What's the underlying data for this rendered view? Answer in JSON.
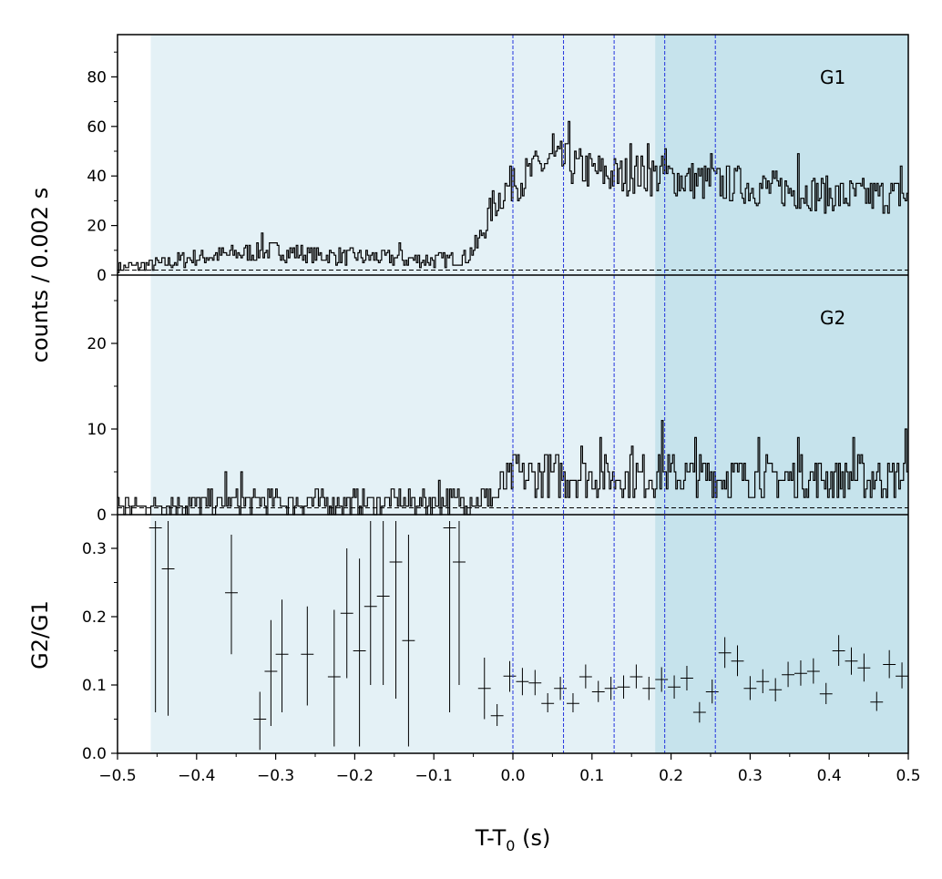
{
  "chart_data": {
    "type": "line",
    "xlabel": "T-T",
    "xlabel_sub": "0",
    "xlabel_unit": " (s)",
    "xlim": [
      -0.5,
      0.5
    ],
    "x_ticks": [
      -0.5,
      -0.4,
      -0.3,
      -0.2,
      -0.1,
      0.0,
      0.1,
      0.2,
      0.3,
      0.4,
      0.5
    ],
    "x_tick_labels": [
      "−0.5",
      "−0.4",
      "−0.3",
      "−0.2",
      "−0.1",
      "0.0",
      "0.1",
      "0.2",
      "0.3",
      "0.4",
      "0.5"
    ],
    "shaded_regions": [
      {
        "x": [
          -0.458,
          0.5
        ],
        "color": "#e4f1f6"
      },
      {
        "x": [
          0.18,
          0.5
        ],
        "color": "#c6e3ec"
      }
    ],
    "vertical_lines": [
      0.0,
      0.064,
      0.128,
      0.192,
      0.256
    ],
    "vertical_line_color": "#2233dd",
    "line_color": "#000000",
    "shared_ylabel": "counts /  0.002 s",
    "panels": [
      {
        "name": "G1",
        "label": "G1",
        "type": "step",
        "ylim": [
          0,
          95
        ],
        "y_ticks": [
          0,
          20,
          40,
          60,
          80
        ],
        "background_level": 2,
        "segments": [
          [
            -0.5,
            3
          ],
          [
            -0.46,
            4
          ],
          [
            -0.4,
            7
          ],
          [
            -0.3,
            10
          ],
          [
            -0.25,
            8
          ],
          [
            -0.1,
            6
          ],
          [
            -0.06,
            7
          ],
          [
            -0.045,
            12
          ],
          [
            -0.035,
            20
          ],
          [
            -0.025,
            28
          ],
          [
            -0.015,
            32
          ],
          [
            -0.005,
            36
          ],
          [
            0.005,
            38
          ],
          [
            0.02,
            40
          ],
          [
            0.035,
            44
          ],
          [
            0.05,
            46
          ],
          [
            0.075,
            44
          ],
          [
            0.1,
            42
          ],
          [
            0.13,
            40
          ],
          [
            0.16,
            41
          ],
          [
            0.19,
            40
          ],
          [
            0.23,
            38
          ],
          [
            0.29,
            36
          ],
          [
            0.35,
            34
          ],
          [
            0.42,
            32
          ],
          [
            0.5,
            32
          ]
        ],
        "spikes": [
          [
            -0.318,
            17
          ],
          [
            -0.145,
            13
          ],
          [
            0.0,
            43
          ],
          [
            0.023,
            47
          ],
          [
            0.05,
            57
          ],
          [
            0.07,
            62
          ],
          [
            0.148,
            53
          ],
          [
            0.17,
            53
          ],
          [
            0.192,
            51
          ],
          [
            0.25,
            49
          ],
          [
            0.285,
            44
          ],
          [
            0.36,
            49
          ],
          [
            0.49,
            44
          ]
        ]
      },
      {
        "name": "G2",
        "label": "G2",
        "type": "step",
        "ylim": [
          0,
          28
        ],
        "y_ticks": [
          0,
          10,
          20
        ],
        "background_level": 0.8,
        "segments": [
          [
            -0.5,
            1
          ],
          [
            -0.3,
            1.5
          ],
          [
            -0.1,
            1.5
          ],
          [
            -0.02,
            2
          ],
          [
            -0.01,
            4
          ],
          [
            0.0,
            4.5
          ],
          [
            0.1,
            4.5
          ],
          [
            0.2,
            4.5
          ],
          [
            0.3,
            4.3
          ],
          [
            0.4,
            4.3
          ],
          [
            0.5,
            4.3
          ]
        ],
        "spikes": [
          [
            -0.365,
            5
          ],
          [
            -0.345,
            5
          ],
          [
            -0.095,
            4
          ],
          [
            -0.03,
            3
          ],
          [
            0.005,
            7
          ],
          [
            0.04,
            7
          ],
          [
            0.085,
            8
          ],
          [
            0.11,
            9
          ],
          [
            0.15,
            8
          ],
          [
            0.188,
            11
          ],
          [
            0.23,
            9
          ],
          [
            0.31,
            9
          ],
          [
            0.36,
            9
          ],
          [
            0.43,
            9
          ],
          [
            0.495,
            10
          ]
        ]
      },
      {
        "name": "G2/G1",
        "ylabel": "G2/G1",
        "type": "errorbar",
        "ylim": [
          0,
          0.34
        ],
        "y_ticks": [
          0.0,
          0.1,
          0.2,
          0.3
        ],
        "y_tick_labels": [
          "0.0",
          "0.1",
          "0.2",
          "0.3"
        ],
        "x_halfwidth": 0.008,
        "points": [
          {
            "x": -0.452,
            "y": 0.33,
            "lo": 0.06,
            "hi": 0.34
          },
          {
            "x": -0.436,
            "y": 0.27,
            "lo": 0.055,
            "hi": 0.34
          },
          {
            "x": -0.356,
            "y": 0.235,
            "lo": 0.145,
            "hi": 0.32
          },
          {
            "x": -0.32,
            "y": 0.05,
            "lo": 0.005,
            "hi": 0.09
          },
          {
            "x": -0.306,
            "y": 0.12,
            "lo": 0.04,
            "hi": 0.195
          },
          {
            "x": -0.292,
            "y": 0.145,
            "lo": 0.06,
            "hi": 0.225
          },
          {
            "x": -0.26,
            "y": 0.145,
            "lo": 0.07,
            "hi": 0.215
          },
          {
            "x": -0.226,
            "y": 0.112,
            "lo": 0.01,
            "hi": 0.21
          },
          {
            "x": -0.21,
            "y": 0.205,
            "lo": 0.11,
            "hi": 0.3
          },
          {
            "x": -0.194,
            "y": 0.15,
            "lo": 0.01,
            "hi": 0.285
          },
          {
            "x": -0.18,
            "y": 0.215,
            "lo": 0.1,
            "hi": 0.34
          },
          {
            "x": -0.164,
            "y": 0.23,
            "lo": 0.1,
            "hi": 0.34
          },
          {
            "x": -0.148,
            "y": 0.28,
            "lo": 0.08,
            "hi": 0.34
          },
          {
            "x": -0.132,
            "y": 0.165,
            "lo": 0.01,
            "hi": 0.32
          },
          {
            "x": -0.08,
            "y": 0.33,
            "lo": 0.06,
            "hi": 0.34
          },
          {
            "x": -0.068,
            "y": 0.28,
            "lo": 0.1,
            "hi": 0.34
          },
          {
            "x": -0.036,
            "y": 0.095,
            "lo": 0.05,
            "hi": 0.14
          },
          {
            "x": -0.02,
            "y": 0.055,
            "lo": 0.04,
            "hi": 0.072
          },
          {
            "x": -0.004,
            "y": 0.113,
            "lo": 0.09,
            "hi": 0.135
          },
          {
            "x": 0.012,
            "y": 0.105,
            "lo": 0.085,
            "hi": 0.125
          },
          {
            "x": 0.028,
            "y": 0.103,
            "lo": 0.085,
            "hi": 0.122
          },
          {
            "x": 0.044,
            "y": 0.073,
            "lo": 0.06,
            "hi": 0.088
          },
          {
            "x": 0.06,
            "y": 0.095,
            "lo": 0.078,
            "hi": 0.112
          },
          {
            "x": 0.076,
            "y": 0.073,
            "lo": 0.06,
            "hi": 0.088
          },
          {
            "x": 0.092,
            "y": 0.112,
            "lo": 0.095,
            "hi": 0.13
          },
          {
            "x": 0.108,
            "y": 0.09,
            "lo": 0.075,
            "hi": 0.106
          },
          {
            "x": 0.124,
            "y": 0.095,
            "lo": 0.078,
            "hi": 0.112
          },
          {
            "x": 0.14,
            "y": 0.097,
            "lo": 0.08,
            "hi": 0.114
          },
          {
            "x": 0.156,
            "y": 0.112,
            "lo": 0.095,
            "hi": 0.13
          },
          {
            "x": 0.172,
            "y": 0.095,
            "lo": 0.078,
            "hi": 0.112
          },
          {
            "x": 0.188,
            "y": 0.108,
            "lo": 0.09,
            "hi": 0.126
          },
          {
            "x": 0.204,
            "y": 0.097,
            "lo": 0.08,
            "hi": 0.114
          },
          {
            "x": 0.22,
            "y": 0.11,
            "lo": 0.092,
            "hi": 0.128
          },
          {
            "x": 0.236,
            "y": 0.06,
            "lo": 0.045,
            "hi": 0.075
          },
          {
            "x": 0.252,
            "y": 0.09,
            "lo": 0.073,
            "hi": 0.108
          },
          {
            "x": 0.268,
            "y": 0.147,
            "lo": 0.125,
            "hi": 0.17
          },
          {
            "x": 0.284,
            "y": 0.135,
            "lo": 0.113,
            "hi": 0.158
          },
          {
            "x": 0.3,
            "y": 0.095,
            "lo": 0.078,
            "hi": 0.113
          },
          {
            "x": 0.316,
            "y": 0.105,
            "lo": 0.088,
            "hi": 0.123
          },
          {
            "x": 0.332,
            "y": 0.093,
            "lo": 0.076,
            "hi": 0.11
          },
          {
            "x": 0.348,
            "y": 0.115,
            "lo": 0.097,
            "hi": 0.134
          },
          {
            "x": 0.364,
            "y": 0.117,
            "lo": 0.099,
            "hi": 0.136
          },
          {
            "x": 0.38,
            "y": 0.12,
            "lo": 0.102,
            "hi": 0.139
          },
          {
            "x": 0.396,
            "y": 0.087,
            "lo": 0.072,
            "hi": 0.103
          },
          {
            "x": 0.412,
            "y": 0.15,
            "lo": 0.128,
            "hi": 0.173
          },
          {
            "x": 0.428,
            "y": 0.135,
            "lo": 0.115,
            "hi": 0.155
          },
          {
            "x": 0.444,
            "y": 0.125,
            "lo": 0.105,
            "hi": 0.146
          },
          {
            "x": 0.46,
            "y": 0.075,
            "lo": 0.062,
            "hi": 0.09
          },
          {
            "x": 0.476,
            "y": 0.13,
            "lo": 0.11,
            "hi": 0.151
          },
          {
            "x": 0.492,
            "y": 0.113,
            "lo": 0.095,
            "hi": 0.133
          }
        ]
      }
    ]
  }
}
